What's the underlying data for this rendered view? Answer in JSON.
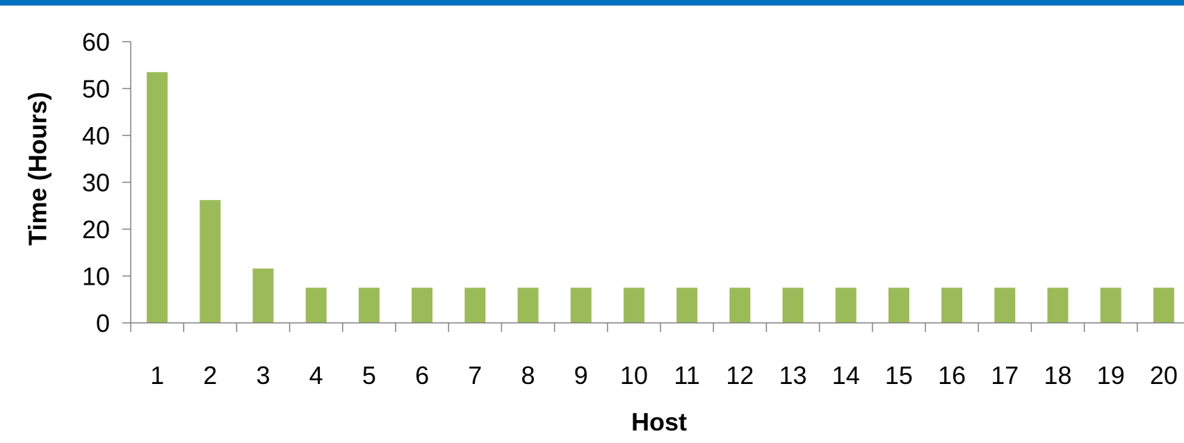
{
  "colors": {
    "top_bar": "#0070C0",
    "bar": "#9BBB59",
    "axis": "#808080"
  },
  "chart_data": {
    "type": "bar",
    "title": "",
    "xlabel": "Host",
    "ylabel": "Time (Hours)",
    "categories": [
      "1",
      "2",
      "3",
      "4",
      "5",
      "6",
      "7",
      "8",
      "9",
      "10",
      "11",
      "12",
      "13",
      "14",
      "15",
      "16",
      "17",
      "18",
      "19",
      "20"
    ],
    "values": [
      53.5,
      26.2,
      11.6,
      7.5,
      7.5,
      7.5,
      7.5,
      7.5,
      7.5,
      7.5,
      7.5,
      7.5,
      7.5,
      7.5,
      7.5,
      7.5,
      7.5,
      7.5,
      7.5,
      7.5
    ],
    "ylim": [
      0,
      60
    ],
    "yticks": [
      "0",
      "10",
      "20",
      "30",
      "40",
      "50",
      "60"
    ],
    "grid": false,
    "legend": "none"
  }
}
